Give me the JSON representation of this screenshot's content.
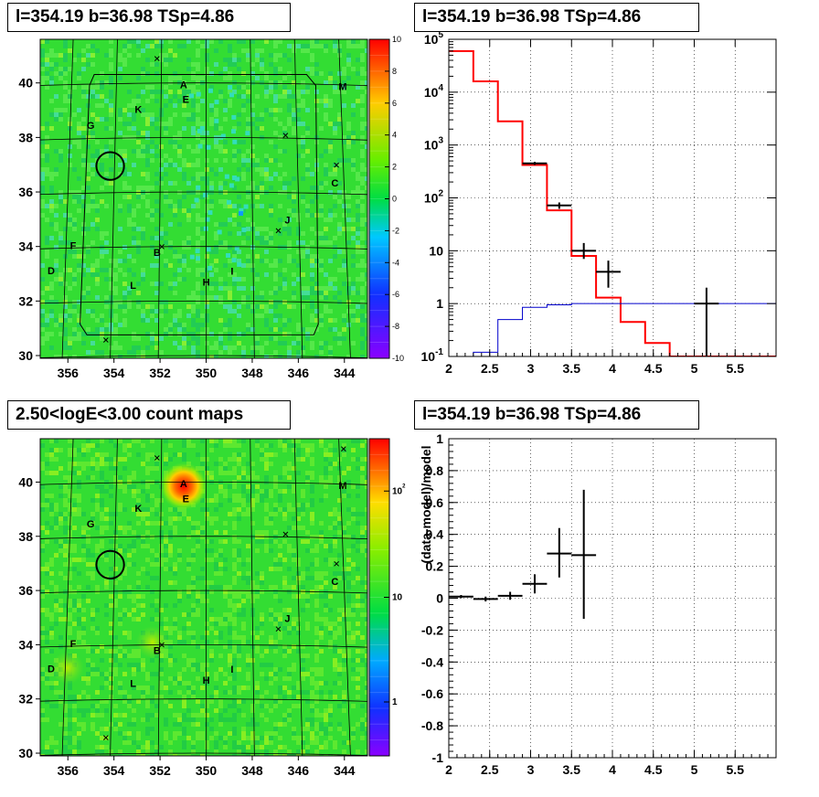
{
  "panels": {
    "top_left_title": "l=354.19 b=36.98 TSp=4.86",
    "top_right_title": "l=354.19 b=36.98 TSp=4.86",
    "bottom_left_title": "2.50<logE<3.00 count maps",
    "bottom_right_title": "l=354.19 b=36.98 TSp=4.86"
  },
  "colors": {
    "data": "#000000",
    "model": "#ff0000",
    "source_component": "#0000cc",
    "map_background": "#33dd33",
    "grid": "#000000"
  },
  "chart_data": [
    {
      "type": "heatmap",
      "id": "residual-map",
      "x_ticks": [
        "356",
        "354",
        "352",
        "350",
        "348",
        "346",
        "344"
      ],
      "y_ticks": [
        "30",
        "32",
        "34",
        "36",
        "38",
        "40"
      ],
      "xlim": [
        357.2,
        343
      ],
      "ylim": [
        29.9,
        41.6
      ],
      "colorbar": {
        "min": -10,
        "max": 10,
        "ticks": [
          "-10",
          "-8",
          "-6",
          "-4",
          "-2",
          "0",
          "2",
          "4",
          "6",
          "8",
          "10"
        ]
      },
      "source_labels": [
        {
          "label": "A",
          "l": 351.0,
          "b": 39.95
        },
        {
          "label": "E",
          "l": 350.9,
          "b": 39.4
        },
        {
          "label": "K",
          "l": 353.0,
          "b": 39.05
        },
        {
          "label": "M",
          "l": 343.9,
          "b": 39.95
        },
        {
          "label": "G",
          "l": 355.1,
          "b": 38.5
        },
        {
          "label": "C",
          "l": 344.4,
          "b": 36.4
        },
        {
          "label": "J",
          "l": 346.5,
          "b": 35.0
        },
        {
          "label": "F",
          "l": 355.7,
          "b": 34.1
        },
        {
          "label": "D",
          "l": 356.6,
          "b": 33.2
        },
        {
          "label": "B",
          "l": 352.1,
          "b": 33.8
        },
        {
          "label": "I",
          "l": 348.9,
          "b": 33.1
        },
        {
          "label": "H",
          "l": 350.0,
          "b": 32.7
        },
        {
          "label": "L",
          "l": 353.1,
          "b": 32.6
        }
      ],
      "source_marks": [
        {
          "l": 352.2,
          "b": 40.9
        },
        {
          "l": 346.5,
          "b": 38.1
        },
        {
          "l": 344.3,
          "b": 37.05
        },
        {
          "l": 346.9,
          "b": 34.6
        },
        {
          "l": 351.9,
          "b": 34.0
        },
        {
          "l": 354.2,
          "b": 30.6
        }
      ],
      "test_position": {
        "l": 354.19,
        "b": 36.98,
        "radius_deg": 0.5
      }
    },
    {
      "type": "line",
      "id": "spectrum",
      "xlim": [
        2,
        6
      ],
      "ylim": [
        0.1,
        100000
      ],
      "y_scale": "log",
      "x_ticks": [
        "2",
        "2.5",
        "3",
        "3.5",
        "4",
        "4.5",
        "5",
        "5.5"
      ],
      "y_ticks": [
        "10^-1",
        "1",
        "10",
        "10^2",
        "10^3",
        "10^4",
        "10^5"
      ],
      "grid": true,
      "bin_edges": [
        2.0,
        2.3,
        2.6,
        2.9,
        3.2,
        3.5,
        3.8,
        4.1,
        4.4,
        4.7,
        5.0,
        5.3,
        5.6,
        6.0
      ],
      "data_points": [
        {
          "x": 3.05,
          "y": 450,
          "xerr": 0.15,
          "ylo": 420,
          "yhi": 480
        },
        {
          "x": 3.35,
          "y": 72,
          "xerr": 0.15,
          "ylo": 62,
          "yhi": 82
        },
        {
          "x": 3.65,
          "y": 10,
          "xerr": 0.15,
          "ylo": 7,
          "yhi": 14
        },
        {
          "x": 3.95,
          "y": 4,
          "xerr": 0.15,
          "ylo": 2,
          "yhi": 6.5
        },
        {
          "x": 5.15,
          "y": 1,
          "xerr": 0.15,
          "ylo": 0.1,
          "yhi": 2
        }
      ],
      "series": [
        {
          "role": "model",
          "values": [
            60000,
            16000,
            2800,
            420,
            58,
            8,
            1.3,
            0.45,
            0.18,
            0.1,
            0.1,
            0.1,
            0.1
          ]
        },
        {
          "role": "source",
          "values": [
            0.1,
            0.12,
            0.5,
            0.85,
            0.95,
            1.0,
            1.0,
            1.0,
            1.0,
            1.0,
            1.0,
            1.0,
            1.0
          ]
        }
      ]
    },
    {
      "type": "heatmap",
      "id": "count-map",
      "x_ticks": [
        "356",
        "354",
        "352",
        "350",
        "348",
        "346",
        "344"
      ],
      "y_ticks": [
        "30",
        "32",
        "34",
        "36",
        "38",
        "40"
      ],
      "xlim": [
        357.2,
        343
      ],
      "ylim": [
        29.9,
        41.6
      ],
      "colorbar": {
        "scale": "log",
        "ticks": [
          "1",
          "10",
          "10^2"
        ]
      },
      "bright_spots": [
        {
          "l": 351.0,
          "b": 39.85,
          "intensity": 1.0
        },
        {
          "l": 352.3,
          "b": 34.1,
          "intensity": 0.35
        },
        {
          "l": 355.9,
          "b": 33.2,
          "intensity": 0.25
        }
      ],
      "source_labels": [
        {
          "label": "A",
          "l": 351.0,
          "b": 39.95
        },
        {
          "label": "E",
          "l": 350.9,
          "b": 39.4
        },
        {
          "label": "K",
          "l": 353.0,
          "b": 39.05
        },
        {
          "label": "M",
          "l": 343.9,
          "b": 39.95
        },
        {
          "label": "G",
          "l": 355.1,
          "b": 38.5
        },
        {
          "label": "C",
          "l": 344.4,
          "b": 36.4
        },
        {
          "label": "J",
          "l": 346.5,
          "b": 35.0
        },
        {
          "label": "F",
          "l": 355.7,
          "b": 34.1
        },
        {
          "label": "D",
          "l": 356.6,
          "b": 33.2
        },
        {
          "label": "B",
          "l": 352.1,
          "b": 33.8
        },
        {
          "label": "I",
          "l": 348.9,
          "b": 33.1
        },
        {
          "label": "H",
          "l": 350.0,
          "b": 32.7
        },
        {
          "label": "L",
          "l": 353.1,
          "b": 32.6
        }
      ],
      "source_marks": [
        {
          "l": 352.2,
          "b": 40.9
        },
        {
          "l": 343.8,
          "b": 41.3
        },
        {
          "l": 346.5,
          "b": 38.1
        },
        {
          "l": 344.3,
          "b": 37.05
        },
        {
          "l": 346.9,
          "b": 34.6
        },
        {
          "l": 351.9,
          "b": 34.0
        },
        {
          "l": 354.2,
          "b": 30.6
        }
      ],
      "test_position": {
        "l": 354.19,
        "b": 36.98,
        "radius_deg": 0.5
      }
    },
    {
      "type": "scatter",
      "id": "residuals",
      "xlim": [
        2,
        6
      ],
      "ylim": [
        -1,
        1
      ],
      "ylabel": "(data-model)/model",
      "x_ticks": [
        "2",
        "2.5",
        "3",
        "3.5",
        "4",
        "4.5",
        "5",
        "5.5"
      ],
      "y_ticks": [
        "-1",
        "-0.8",
        "-0.6",
        "-0.4",
        "-0.2",
        "0",
        "0.2",
        "0.4",
        "0.6",
        "0.8",
        "1"
      ],
      "grid": true,
      "points": [
        {
          "x": 2.15,
          "y": 0.01,
          "xerr": 0.15,
          "ylo": 0.0,
          "yhi": 0.02
        },
        {
          "x": 2.45,
          "y": -0.005,
          "xerr": 0.15,
          "ylo": -0.02,
          "yhi": 0.01
        },
        {
          "x": 2.75,
          "y": 0.015,
          "xerr": 0.15,
          "ylo": -0.01,
          "yhi": 0.04
        },
        {
          "x": 3.05,
          "y": 0.09,
          "xerr": 0.15,
          "ylo": 0.03,
          "yhi": 0.15
        },
        {
          "x": 3.35,
          "y": 0.28,
          "xerr": 0.15,
          "ylo": 0.13,
          "yhi": 0.44
        },
        {
          "x": 3.65,
          "y": 0.27,
          "xerr": 0.15,
          "ylo": -0.13,
          "yhi": 0.68
        }
      ]
    }
  ]
}
